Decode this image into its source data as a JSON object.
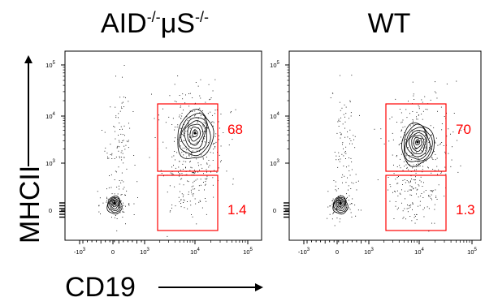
{
  "chart_data": [
    {
      "type": "contour",
      "title_parts": [
        "AID",
        "-/-",
        "μS",
        "-/-"
      ],
      "xlabel": "CD19",
      "ylabel": "MHCII",
      "x_ticks": [
        "-10 3",
        "0",
        "10 3",
        "10 4",
        "10 5"
      ],
      "y_ticks": [
        "10 5",
        "10 4",
        "10 3",
        "0"
      ],
      "populations": [
        {
          "name": "CD19- MHCII-",
          "x": "0",
          "y": "0"
        },
        {
          "name": "CD19+ MHCII+",
          "x": "10 4",
          "y": "10 3-10 4"
        }
      ],
      "gates": [
        {
          "region": "CD19+ MHCII hi",
          "value": "68"
        },
        {
          "region": "CD19+ MHCII lo",
          "value": "1.4"
        }
      ]
    },
    {
      "type": "contour",
      "title_parts": [
        "WT"
      ],
      "xlabel": "CD19",
      "ylabel": "MHCII",
      "x_ticks": [
        "-10 3",
        "0",
        "10 3",
        "10 4",
        "10 5"
      ],
      "y_ticks": [
        "10 5",
        "10 4",
        "10 3",
        "0"
      ],
      "populations": [
        {
          "name": "CD19- MHCII-",
          "x": "0",
          "y": "0"
        },
        {
          "name": "CD19+ MHCII+",
          "x": "10 4",
          "y": "10 3-10 4"
        }
      ],
      "gates": [
        {
          "region": "CD19+ MHCII hi",
          "value": "70"
        },
        {
          "region": "CD19+ MHCII lo",
          "value": "1.3"
        }
      ]
    }
  ],
  "colors": {
    "gate": "#ff0000",
    "ink": "#000000"
  }
}
